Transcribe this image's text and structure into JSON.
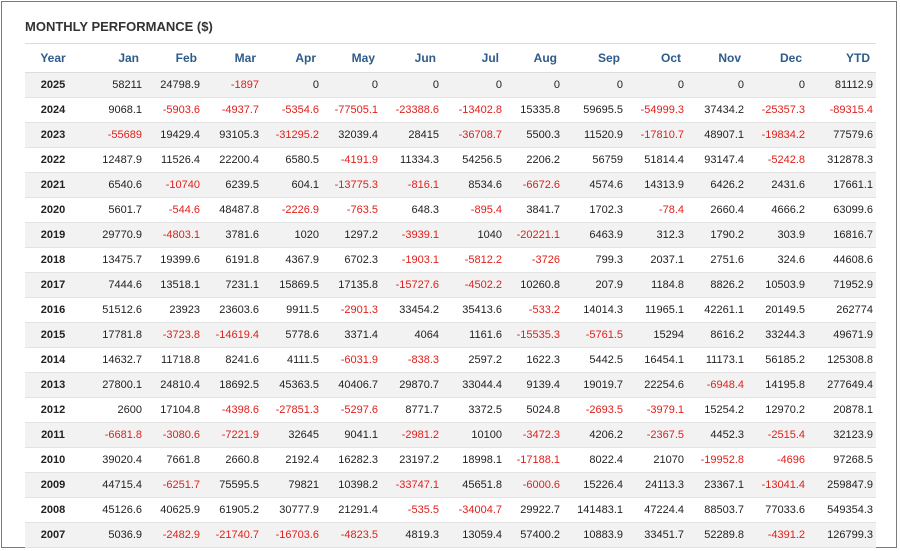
{
  "title": "MONTHLY PERFORMANCE ($)",
  "colors": {
    "header_text": "#2d5c8a",
    "negative": "#e0201c",
    "stripe": "#f2f2f2"
  },
  "columns": [
    "Year",
    "Jan",
    "Feb",
    "Mar",
    "Apr",
    "May",
    "Jun",
    "Jul",
    "Aug",
    "Sep",
    "Oct",
    "Nov",
    "Dec",
    "YTD"
  ],
  "rows": [
    [
      "2025",
      "58211",
      "24798.9",
      "-1897",
      "0",
      "0",
      "0",
      "0",
      "0",
      "0",
      "0",
      "0",
      "0",
      "81112.9"
    ],
    [
      "2024",
      "9068.1",
      "-5903.6",
      "-4937.7",
      "-5354.6",
      "-77505.1",
      "-23388.6",
      "-13402.8",
      "15335.8",
      "59695.5",
      "-54999.3",
      "37434.2",
      "-25357.3",
      "-89315.4"
    ],
    [
      "2023",
      "-55689",
      "19429.4",
      "93105.3",
      "-31295.2",
      "32039.4",
      "28415",
      "-36708.7",
      "5500.3",
      "11520.9",
      "-17810.7",
      "48907.1",
      "-19834.2",
      "77579.6"
    ],
    [
      "2022",
      "12487.9",
      "11526.4",
      "22200.4",
      "6580.5",
      "-4191.9",
      "11334.3",
      "54256.5",
      "2206.2",
      "56759",
      "51814.4",
      "93147.4",
      "-5242.8",
      "312878.3"
    ],
    [
      "2021",
      "6540.6",
      "-10740",
      "6239.5",
      "604.1",
      "-13775.3",
      "-816.1",
      "8534.6",
      "-6672.6",
      "4574.6",
      "14313.9",
      "6426.2",
      "2431.6",
      "17661.1"
    ],
    [
      "2020",
      "5601.7",
      "-544.6",
      "48487.8",
      "-2226.9",
      "-763.5",
      "648.3",
      "-895.4",
      "3841.7",
      "1702.3",
      "-78.4",
      "2660.4",
      "4666.2",
      "63099.6"
    ],
    [
      "2019",
      "29770.9",
      "-4803.1",
      "3781.6",
      "1020",
      "1297.2",
      "-3939.1",
      "1040",
      "-20221.1",
      "6463.9",
      "312.3",
      "1790.2",
      "303.9",
      "16816.7"
    ],
    [
      "2018",
      "13475.7",
      "19399.6",
      "6191.8",
      "4367.9",
      "6702.3",
      "-1903.1",
      "-5812.2",
      "-3726",
      "799.3",
      "2037.1",
      "2751.6",
      "324.6",
      "44608.6"
    ],
    [
      "2017",
      "7444.6",
      "13518.1",
      "7231.1",
      "15869.5",
      "17135.8",
      "-15727.6",
      "-4502.2",
      "10260.8",
      "207.9",
      "1184.8",
      "8826.2",
      "10503.9",
      "71952.9"
    ],
    [
      "2016",
      "51512.6",
      "23923",
      "23603.6",
      "9911.5",
      "-2901.3",
      "33454.2",
      "35413.6",
      "-533.2",
      "14014.3",
      "11965.1",
      "42261.1",
      "20149.5",
      "262774"
    ],
    [
      "2015",
      "17781.8",
      "-3723.8",
      "-14619.4",
      "5778.6",
      "3371.4",
      "4064",
      "1161.6",
      "-15535.3",
      "-5761.5",
      "15294",
      "8616.2",
      "33244.3",
      "49671.9"
    ],
    [
      "2014",
      "14632.7",
      "11718.8",
      "8241.6",
      "4111.5",
      "-6031.9",
      "-838.3",
      "2597.2",
      "1622.3",
      "5442.5",
      "16454.1",
      "11173.1",
      "56185.2",
      "125308.8"
    ],
    [
      "2013",
      "27800.1",
      "24810.4",
      "18692.5",
      "45363.5",
      "40406.7",
      "29870.7",
      "33044.4",
      "9139.4",
      "19019.7",
      "22254.6",
      "-6948.4",
      "14195.8",
      "277649.4"
    ],
    [
      "2012",
      "2600",
      "17104.8",
      "-4398.6",
      "-27851.3",
      "-5297.6",
      "8771.7",
      "3372.5",
      "5024.8",
      "-2693.5",
      "-3979.1",
      "15254.2",
      "12970.2",
      "20878.1"
    ],
    [
      "2011",
      "-6681.8",
      "-3080.6",
      "-7221.9",
      "32645",
      "9041.1",
      "-2981.2",
      "10100",
      "-3472.3",
      "4206.2",
      "-2367.5",
      "4452.3",
      "-2515.4",
      "32123.9"
    ],
    [
      "2010",
      "39020.4",
      "7661.8",
      "2660.8",
      "2192.4",
      "16282.3",
      "23197.2",
      "18998.1",
      "-17188.1",
      "8022.4",
      "21070",
      "-19952.8",
      "-4696",
      "97268.5"
    ],
    [
      "2009",
      "44715.4",
      "-6251.7",
      "75595.5",
      "79821",
      "10398.2",
      "-33747.1",
      "45651.8",
      "-6000.6",
      "15226.4",
      "24113.3",
      "23367.1",
      "-13041.4",
      "259847.9"
    ],
    [
      "2008",
      "45126.6",
      "40625.9",
      "61905.2",
      "30777.9",
      "21291.4",
      "-535.5",
      "-34004.7",
      "29922.7",
      "141483.1",
      "47224.4",
      "88503.7",
      "77033.6",
      "549354.3"
    ],
    [
      "2007",
      "5036.9",
      "-2482.9",
      "-21740.7",
      "-16703.6",
      "-4823.5",
      "4819.3",
      "13059.4",
      "57400.2",
      "10883.9",
      "33451.7",
      "52289.8",
      "-4391.2",
      "126799.3"
    ]
  ]
}
